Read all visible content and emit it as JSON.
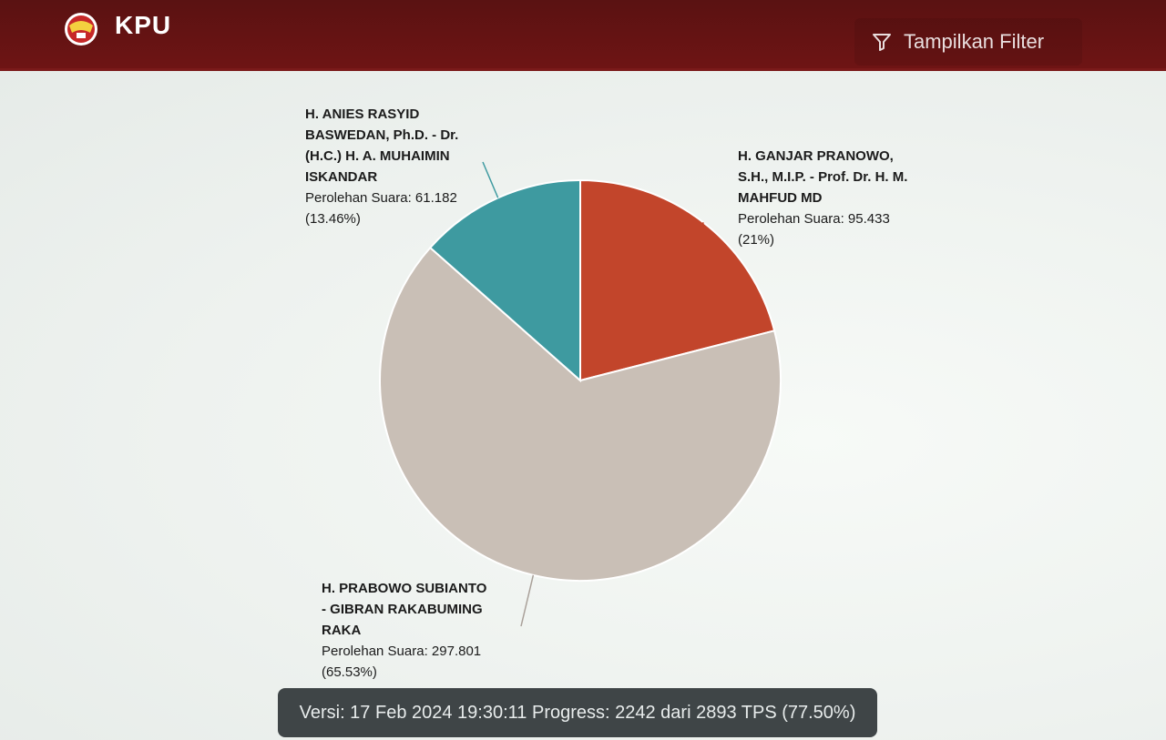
{
  "header": {
    "brand": "KPU",
    "filter_label": "Tampilkan Filter",
    "filter_icon": "filter-icon",
    "logo_icon": "kpu-emblem-icon"
  },
  "chart_data": {
    "type": "pie",
    "slices": [
      {
        "name": "H. GANJAR PRANOWO, S.H., M.I.P. - Prof. Dr. H. M. MAHFUD MD",
        "name_display": "H. GANJAR PRANOWO,\nS.H., M.I.P. - Prof. Dr. H. M.\nMAHFUD MD",
        "votes_text": "Perolehan Suara: 95.433\n(21%)",
        "value": 95433,
        "percent": 21,
        "color": "#c2452b"
      },
      {
        "name": "H. PRABOWO SUBIANTO - GIBRAN RAKABUMING RAKA",
        "name_display": "H. PRABOWO SUBIANTO\n- GIBRAN RAKABUMING\nRAKA",
        "votes_text": "Perolehan Suara: 297.801\n(65.53%)",
        "value": 297801,
        "percent": 65.53,
        "color": "#c9bfb6"
      },
      {
        "name": "H. ANIES RASYID BASWEDAN, Ph.D. - Dr. (H.C.) H. A. MUHAIMIN ISKANDAR",
        "name_display": "H. ANIES RASYID\nBASWEDAN, Ph.D. - Dr.\n(H.C.) H. A. MUHAIMIN\nISKANDAR",
        "votes_text": "Perolehan Suara: 61.182\n(13.46%)",
        "value": 61182,
        "percent": 13.46,
        "color": "#3e9aa0"
      }
    ]
  },
  "status": {
    "text": "Versi: 17 Feb 2024 19:30:11 Progress: 2242 dari 2893 TPS (77.50%)"
  }
}
